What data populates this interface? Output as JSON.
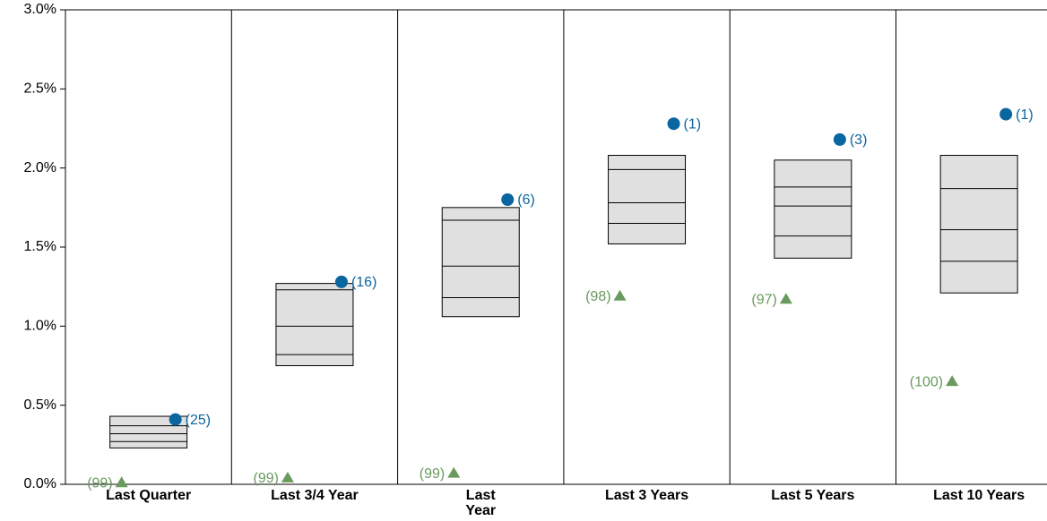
{
  "chart_data": {
    "type": "floating-box",
    "categories": [
      "Last Quarter",
      "Last 3/4 Year",
      "Last\nYear",
      "Last 3 Years",
      "Last 5 Years",
      "Last 10 Years"
    ],
    "boxes": {
      "color": "#e0e0e0",
      "top": [
        0.43,
        1.27,
        1.75,
        2.08,
        2.05,
        2.08
      ],
      "upper": [
        0.37,
        1.23,
        1.67,
        1.99,
        1.88,
        1.87
      ],
      "median": [
        0.32,
        1.0,
        1.38,
        1.78,
        1.76,
        1.61
      ],
      "lower": [
        0.27,
        0.82,
        1.18,
        1.65,
        1.57,
        1.41
      ],
      "bottom": [
        0.23,
        0.75,
        1.06,
        1.52,
        1.43,
        1.21
      ]
    },
    "series": [
      {
        "marker": "circle",
        "color": "#0a66a0",
        "values": [
          0.41,
          1.28,
          1.8,
          2.28,
          2.18,
          2.34
        ],
        "value_labels": [
          "(25)",
          "(16)",
          "(6)",
          "(1)",
          "(3)",
          "(1)"
        ]
      },
      {
        "marker": "triangle",
        "color": "#6a9a5e",
        "values": [
          0.01,
          0.04,
          0.07,
          1.19,
          1.17,
          0.65
        ],
        "value_labels": [
          "(99)",
          "(99)",
          "(99)",
          "(98)",
          "(97)",
          "(100)"
        ]
      }
    ],
    "ylim": [
      0,
      3
    ],
    "yticks": [
      {
        "value": 0,
        "label": "0.0%"
      },
      {
        "value": 0.5,
        "label": "0.5%"
      },
      {
        "value": 1,
        "label": "1.0%"
      },
      {
        "value": 1.5,
        "label": "1.5%"
      },
      {
        "value": 2,
        "label": "2.0%"
      },
      {
        "value": 2.5,
        "label": "2.5%"
      },
      {
        "value": 3,
        "label": "3.0%"
      }
    ]
  }
}
